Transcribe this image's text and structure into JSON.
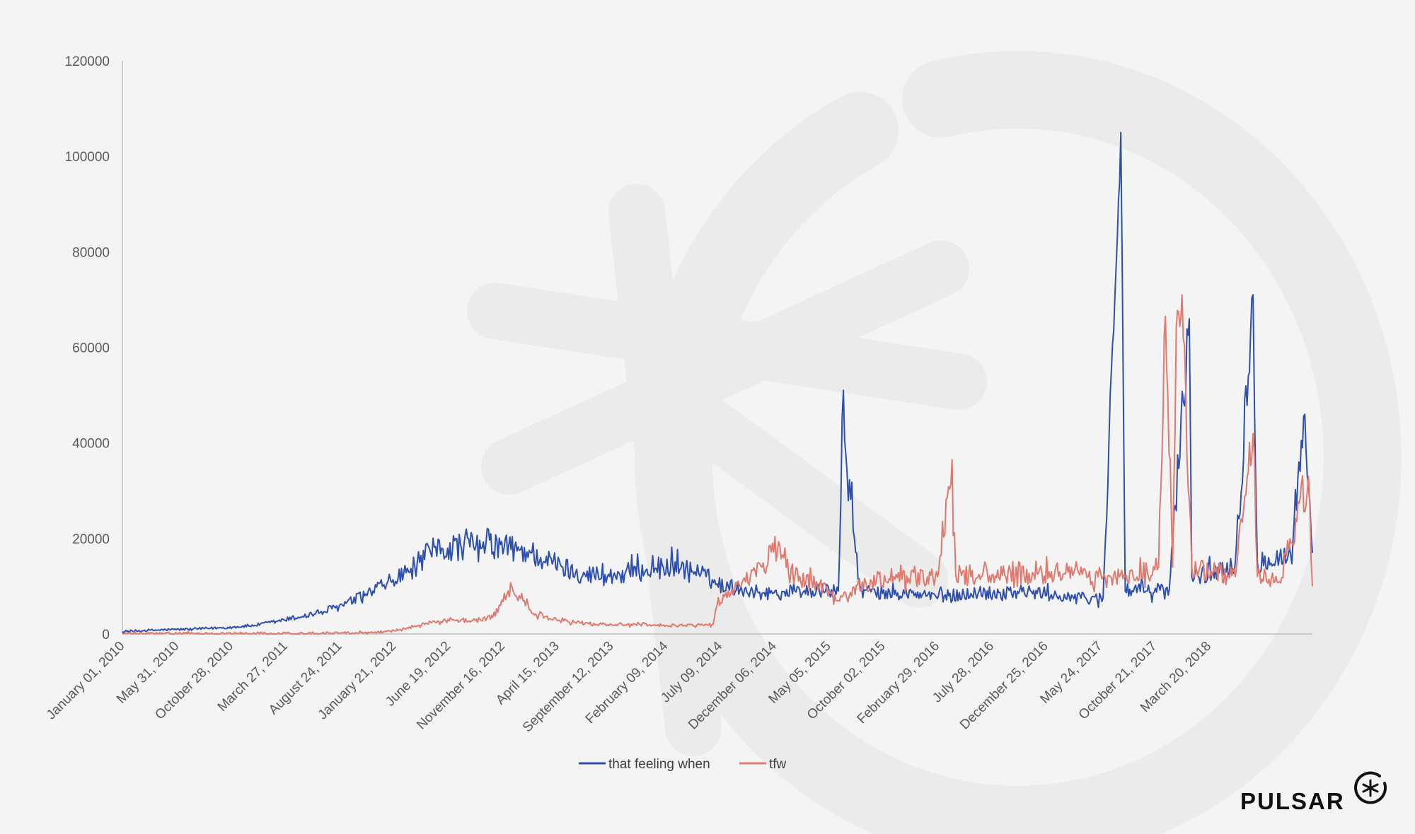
{
  "brand": {
    "name": "PULSAR",
    "logo_icon": "asterisk-circle-icon"
  },
  "chart_data": {
    "type": "line",
    "title": "",
    "xlabel": "",
    "ylabel": "",
    "ylim": [
      0,
      120000
    ],
    "yticks": [
      0,
      20000,
      40000,
      60000,
      80000,
      100000,
      120000
    ],
    "yticklabels": [
      "0",
      "20000",
      "40000",
      "60000",
      "80000",
      "100000",
      "120000"
    ],
    "xlim": [
      "January 01, 2010",
      "December 31, 2018"
    ],
    "xticklabels": [
      "January 01, 2010",
      "May 31, 2010",
      "October 28, 2010",
      "March 27, 2011",
      "August 24, 2011",
      "January 21, 2012",
      "June 19, 2012",
      "November 16, 2012",
      "April 15, 2013",
      "September 12, 2013",
      "February 09, 2014",
      "July 09, 2014",
      "December 06, 2014",
      "May 05, 2015",
      "October 02, 2015",
      "February 29, 2016",
      "July 28, 2016",
      "December 25, 2016",
      "May 24, 2017",
      "October 21, 2017",
      "March 20, 2018"
    ],
    "grid": false,
    "legend": "bottom-center",
    "series": [
      {
        "name": "that feeling when",
        "color": "#2d4fb0",
        "x": [
          "January 01, 2010",
          "March 01, 2010",
          "May 01, 2010",
          "July 01, 2010",
          "September 01, 2010",
          "November 01, 2010",
          "January 01, 2011",
          "March 01, 2011",
          "May 01, 2011",
          "July 01, 2011",
          "September 01, 2011",
          "November 01, 2011",
          "December 20, 2011",
          "January 01, 2012",
          "February 01, 2012",
          "March 01, 2012",
          "April 01, 2012",
          "May 01, 2012",
          "June 01, 2012",
          "August 01, 2012",
          "September 20, 2012",
          "October 01, 2012",
          "November 20, 2012",
          "January 01, 2013",
          "February 01, 2013",
          "March 01, 2013",
          "May 01, 2013",
          "July 01, 2013",
          "September 01, 2013",
          "November 01, 2013",
          "January 01, 2014",
          "March 01, 2014",
          "May 01, 2014",
          "June 01, 2014",
          "July 01, 2014",
          "August 01, 2014",
          "October 01, 2014",
          "December 01, 2014",
          "February 01, 2015",
          "April 01, 2015",
          "June 01, 2015",
          "June 15, 2015",
          "June 25, 2015",
          "August 01, 2015",
          "October 01, 2015",
          "December 01, 2015",
          "February 01, 2016",
          "April 01, 2016",
          "June 01, 2016",
          "August 01, 2016",
          "October 01, 2016",
          "December 01, 2016",
          "February 01, 2017",
          "April 01, 2017",
          "June 01, 2017",
          "July 20, 2017",
          "August 01, 2017",
          "October 01, 2017",
          "December 01, 2017",
          "January 25, 2018",
          "February 01, 2018",
          "April 01, 2018",
          "June 01, 2018",
          "July 20, 2018",
          "August 01, 2018",
          "September 01, 2018",
          "October 01, 2018",
          "November 01, 2018",
          "December 10, 2018",
          "December 31, 2018"
        ],
        "y": [
          500,
          700,
          900,
          1000,
          1200,
          1400,
          1800,
          2600,
          3500,
          4500,
          6000,
          8000,
          10000,
          10500,
          11500,
          13000,
          15000,
          17000,
          18000,
          18500,
          18000,
          19000,
          18000,
          17500,
          17000,
          16000,
          14000,
          12500,
          12000,
          13000,
          13500,
          14500,
          13000,
          12000,
          10500,
          10000,
          9000,
          8500,
          9000,
          9000,
          9000,
          51000,
          34000,
          9000,
          8500,
          8500,
          8000,
          8000,
          8500,
          8500,
          9000,
          8500,
          8000,
          7500,
          7500,
          105000,
          9000,
          9000,
          9500,
          66000,
          12000,
          13000,
          15000,
          71000,
          15000,
          16000,
          16000,
          16500,
          46000,
          17000
        ]
      },
      {
        "name": "tfw",
        "color": "#e07a6e",
        "x": [
          "January 01, 2010",
          "May 01, 2011",
          "November 01, 2011",
          "January 01, 2012",
          "March 01, 2012",
          "May 01, 2012",
          "July 01, 2012",
          "September 01, 2012",
          "October 20, 2012",
          "November 10, 2012",
          "December 01, 2012",
          "January 01, 2013",
          "February 01, 2013",
          "April 01, 2013",
          "June 01, 2013",
          "August 01, 2013",
          "October 01, 2013",
          "December 01, 2013",
          "February 01, 2014",
          "April 01, 2014",
          "June 01, 2014",
          "June 20, 2014",
          "July 01, 2014",
          "August 01, 2014",
          "September 01, 2014",
          "October 01, 2014",
          "November 15, 2014",
          "December 01, 2014",
          "January 01, 2015",
          "February 01, 2015",
          "April 01, 2015",
          "June 01, 2015",
          "July 01, 2015",
          "September 01, 2015",
          "November 01, 2015",
          "January 01, 2016",
          "March 01, 2016",
          "April 10, 2016",
          "April 20, 2016",
          "June 01, 2016",
          "August 01, 2016",
          "October 01, 2016",
          "December 01, 2016",
          "February 01, 2017",
          "April 01, 2017",
          "May 01, 2017",
          "June 01, 2017",
          "August 01, 2017",
          "October 01, 2017",
          "November 01, 2017",
          "November 20, 2017",
          "December 10, 2017",
          "December 20, 2017",
          "January 05, 2018",
          "February 01, 2018",
          "April 01, 2018",
          "June 01, 2018",
          "July 20, 2018",
          "August 01, 2018",
          "October 01, 2018",
          "December 20, 2018",
          "December 31, 2018"
        ],
        "y": [
          100,
          100,
          300,
          500,
          1200,
          2500,
          3000,
          2800,
          3500,
          6000,
          9000,
          8000,
          5000,
          3000,
          2500,
          2000,
          2000,
          2000,
          1800,
          1800,
          2000,
          2000,
          6000,
          9000,
          10000,
          12000,
          14000,
          19000,
          16000,
          12000,
          11000,
          7000,
          8000,
          11000,
          12000,
          11500,
          12000,
          36500,
          12500,
          12000,
          12500,
          12000,
          12500,
          13000,
          14000,
          11000,
          12000,
          12000,
          13000,
          14000,
          66500,
          14000,
          64000,
          71000,
          14000,
          13000,
          12000,
          42000,
          12000,
          11000,
          33000,
          10000
        ]
      }
    ]
  }
}
